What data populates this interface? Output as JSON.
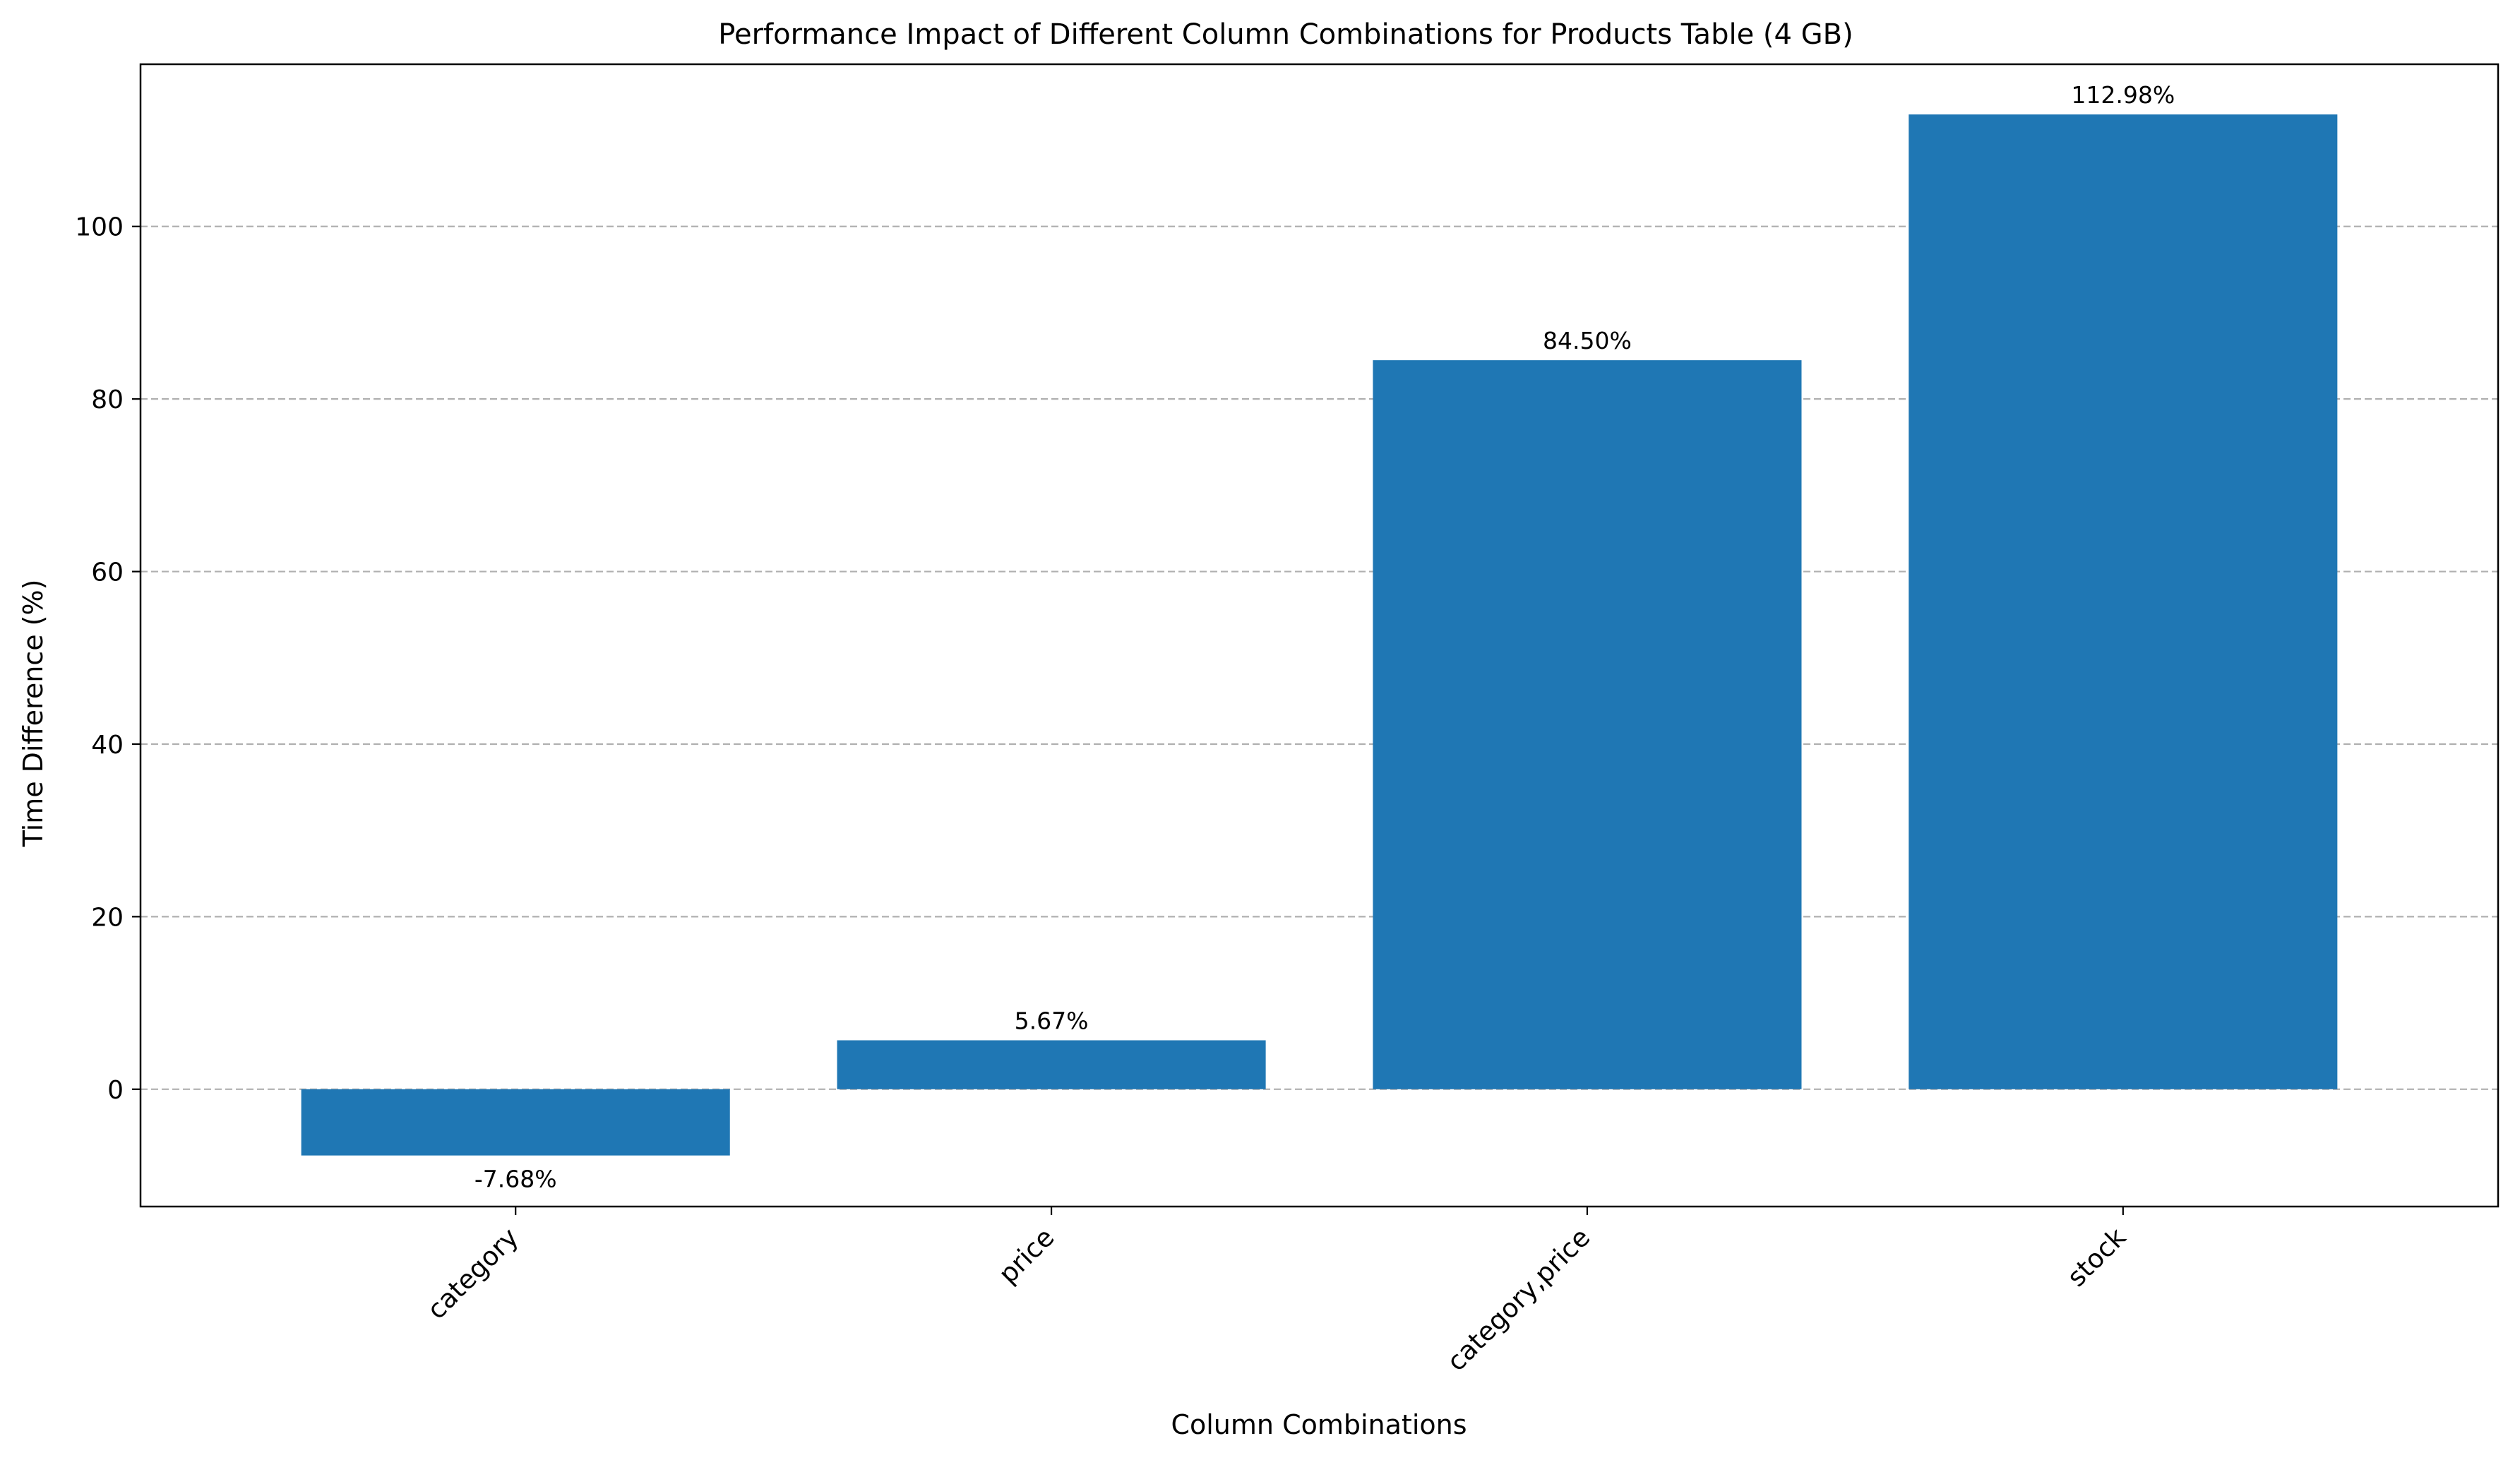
{
  "chart_data": {
    "type": "bar",
    "title": "Performance Impact of Different Column Combinations for Products Table (4 GB)",
    "xlabel": "Column Combinations",
    "ylabel": "Time Difference (%)",
    "categories": [
      "category",
      "price",
      "category,price",
      "stock"
    ],
    "values": [
      -7.68,
      5.67,
      84.5,
      112.98
    ],
    "data_labels": [
      "-7.68%",
      "5.67%",
      "84.50%",
      "112.98%"
    ],
    "ylim": [
      -13.6,
      118.8
    ],
    "yticks": [
      0,
      20,
      40,
      60,
      80,
      100
    ],
    "grid": "y-dashed",
    "legend": "none",
    "colors": {
      "bar": "#1f77b4",
      "grid": "#b0b0b0",
      "axis": "#000000"
    }
  }
}
